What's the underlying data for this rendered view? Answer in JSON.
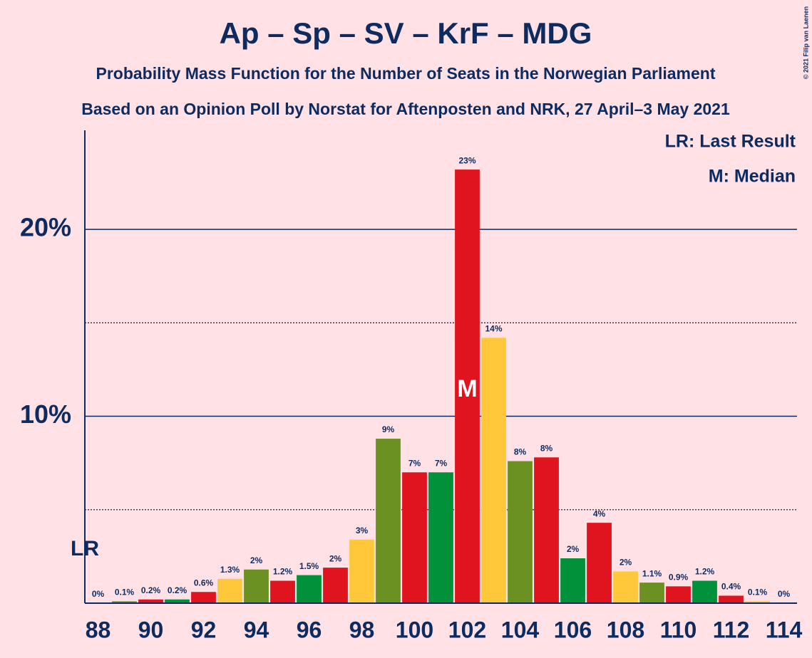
{
  "chart_data": {
    "type": "bar",
    "title": "Ap – Sp – SV – KrF – MDG",
    "subtitles": [
      "Probability Mass Function for the Number of Seats in the Norwegian Parliament",
      "Based on an Opinion Poll by Norstat for Aftenposten and NRK, 27 April–3 May 2021"
    ],
    "copyright": "© 2021 Filip van Laenen",
    "legend": [
      "LR: Last Result",
      "M: Median"
    ],
    "categories": [
      88,
      null,
      90,
      null,
      92,
      null,
      94,
      null,
      96,
      null,
      98,
      null,
      100,
      null,
      102,
      null,
      104,
      null,
      106,
      null,
      108,
      null,
      110,
      null,
      112,
      null,
      114
    ],
    "values": [
      0,
      0.1,
      0.2,
      0.2,
      0.6,
      1.3,
      1.8,
      1.2,
      1.5,
      1.9,
      3.4,
      8.8,
      7.0,
      7.0,
      23.2,
      14.2,
      7.6,
      7.8,
      2.4,
      4.3,
      1.7,
      1.1,
      0.9,
      1.2,
      0.4,
      0.1,
      0
    ],
    "value_labels": [
      "0%",
      "0.1%",
      "0.2%",
      "0.2%",
      "0.6%",
      "1.3%",
      "2%",
      "1.2%",
      "1.5%",
      "2%",
      "3%",
      "9%",
      "7%",
      "7%",
      "23%",
      "14%",
      "8%",
      "8%",
      "2%",
      "4%",
      "2%",
      "1.1%",
      "0.9%",
      "1.2%",
      "0.4%",
      "0.1%",
      "0%"
    ],
    "colors": [
      "#ffc83a",
      "#6b9122",
      "#e0141e",
      "#00913a",
      "#e0141e",
      "#ffc83a",
      "#6b9122",
      "#e0141e",
      "#00913a",
      "#e0141e",
      "#ffc83a",
      "#6b9122",
      "#e0141e",
      "#00913a",
      "#e0141e",
      "#ffc83a",
      "#6b9122",
      "#e0141e",
      "#00913a",
      "#e0141e",
      "#ffc83a",
      "#6b9122",
      "#e0141e",
      "#00913a",
      "#e0141e",
      "#ffc83a",
      "#6b9122"
    ],
    "last_result": 88,
    "last_result_label": "LR",
    "median": 102,
    "median_label": "M",
    "ylim": [
      0,
      25.3
    ],
    "yticks": [
      {
        "value": 10,
        "label": "10%"
      },
      {
        "value": 20,
        "label": "20%"
      }
    ],
    "minor_grid": [
      5,
      15
    ],
    "grid": true
  }
}
